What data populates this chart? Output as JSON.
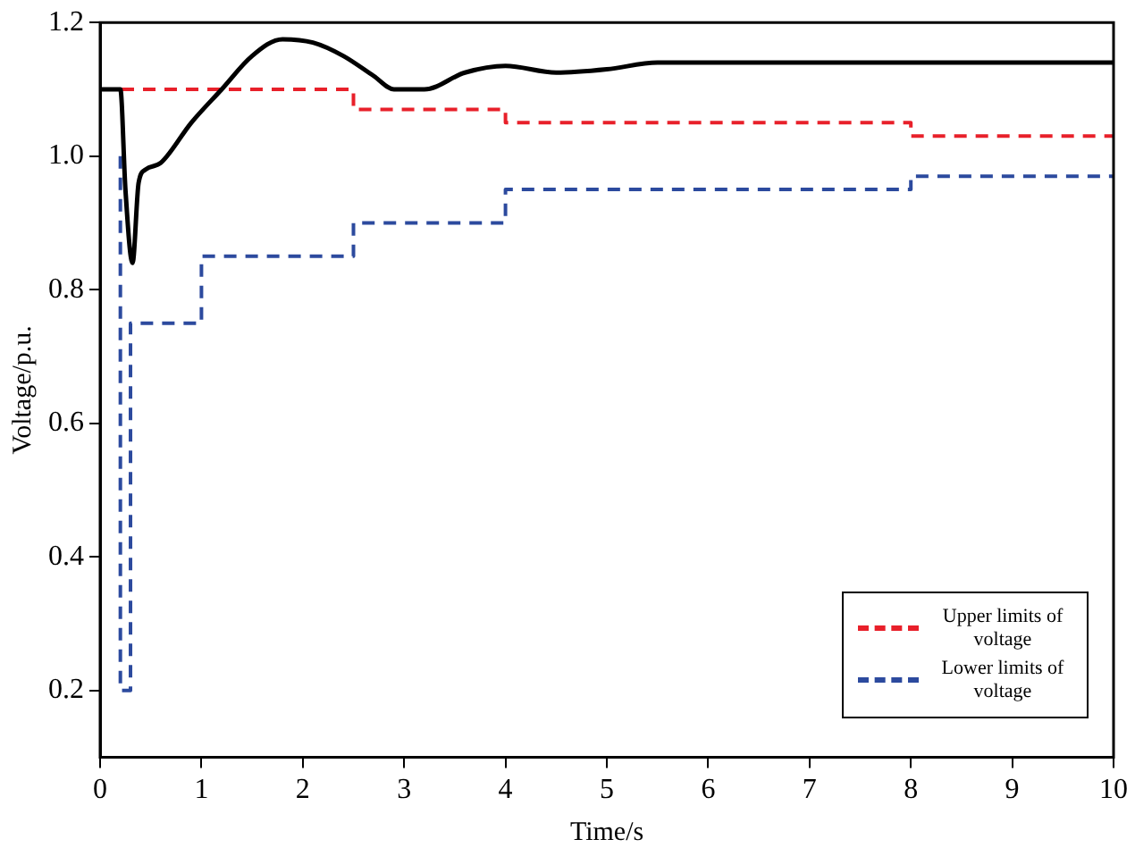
{
  "chart_data": {
    "type": "line",
    "xlabel": "Time/s",
    "ylabel": "Voltage/p.u.",
    "xlim": [
      0,
      10
    ],
    "xticks": [
      0,
      1,
      2,
      3,
      4,
      5,
      6,
      7,
      8,
      9,
      10
    ],
    "ylim": [
      0.1,
      1.2
    ],
    "yticks": [
      0.2,
      0.4,
      0.6,
      0.8,
      {
        "value": 1,
        "label": "1.0"
      },
      1.2
    ],
    "grid": false,
    "legend": "bottom right",
    "marker": "none",
    "series": [
      {
        "color": "#000000",
        "line_style": "solid",
        "x": [
          0,
          0.2,
          0.25,
          0.32,
          0.38,
          0.45,
          0.6,
          0.9,
          1.2,
          1.5,
          1.8,
          2.1,
          2.4,
          2.7,
          2.9,
          3.2,
          3.6,
          4.0,
          4.5,
          5.0,
          5.5,
          6,
          7,
          8,
          9,
          10
        ],
        "values": [
          1.1,
          1.1,
          0.95,
          0.84,
          0.96,
          0.98,
          0.99,
          1.05,
          1.1,
          1.15,
          1.175,
          1.17,
          1.15,
          1.12,
          1.1,
          1.1,
          1.125,
          1.135,
          1.125,
          1.13,
          1.14,
          1.14,
          1.14,
          1.14,
          1.14,
          1.14
        ]
      },
      {
        "name": "Upper limits of voltage",
        "color": "#e8202a",
        "line_style": "dashed",
        "x": [
          0,
          2.5,
          2.5,
          4,
          4,
          8,
          8,
          10
        ],
        "values": [
          1.1,
          1.1,
          1.07,
          1.07,
          1.05,
          1.05,
          1.03,
          1.03
        ]
      },
      {
        "name": "Lower limits of voltage",
        "color": "#2c4a9e",
        "line_style": "dashed",
        "x": [
          0.2,
          0.2,
          0.3,
          0.3,
          1,
          1,
          2.5,
          2.5,
          4,
          4,
          8,
          8,
          10
        ],
        "values": [
          1.0,
          0.2,
          0.2,
          0.75,
          0.75,
          0.85,
          0.85,
          0.9,
          0.9,
          0.95,
          0.95,
          0.97,
          0.97
        ]
      }
    ]
  }
}
